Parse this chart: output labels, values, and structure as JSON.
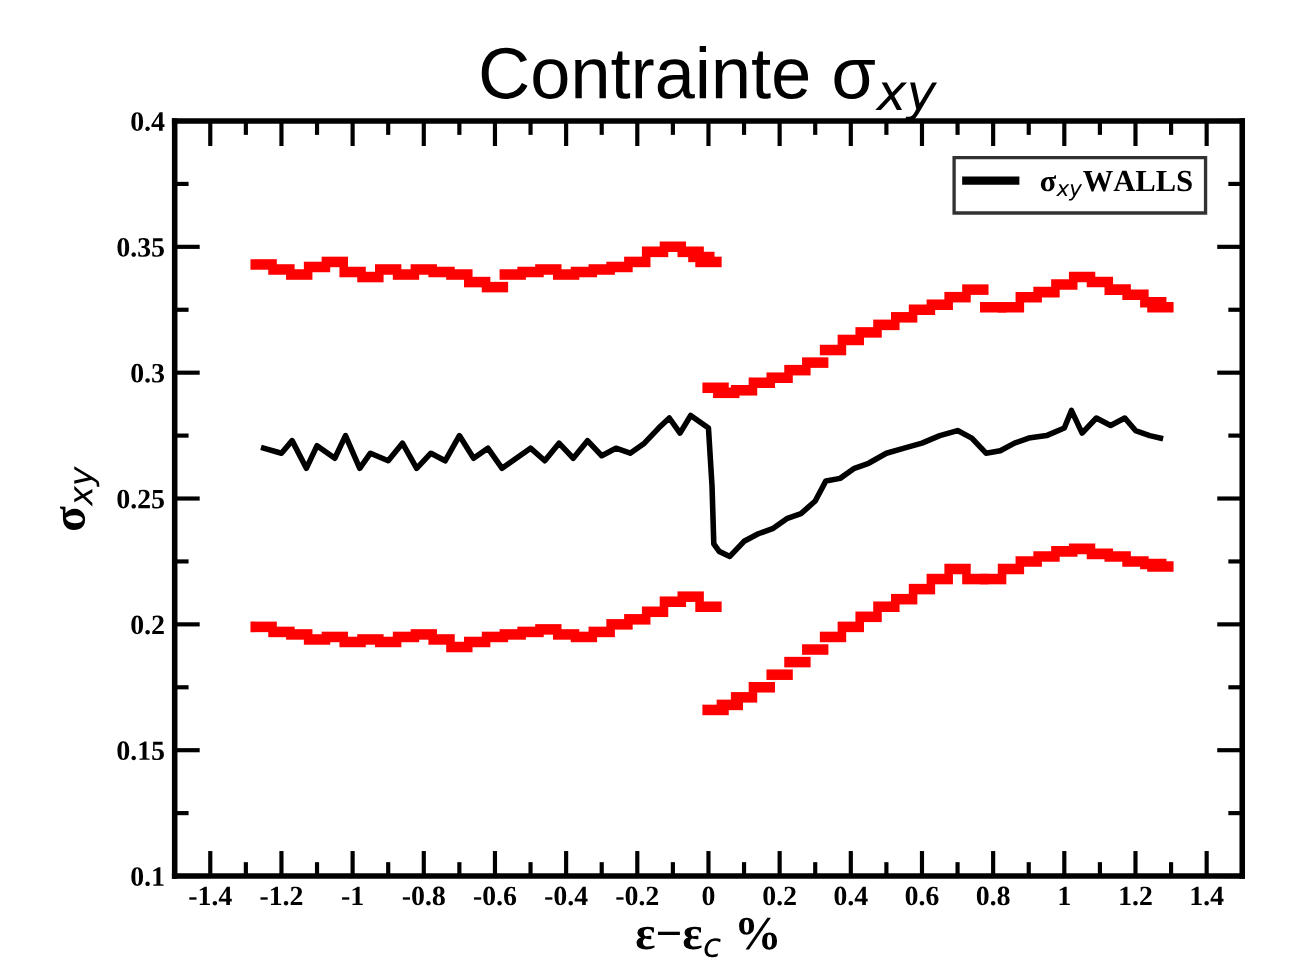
{
  "chart_data": {
    "type": "line",
    "title": "Contrainte σ$_{xy}$",
    "xlabel": "ε−ε$_{c}$ %",
    "ylabel": "σ$_{xy}$",
    "xlim": [
      -1.5,
      1.5
    ],
    "xticks": [
      -1.4,
      -1.2,
      -1,
      -0.8,
      -0.6,
      -0.4,
      -0.2,
      0,
      0.2,
      0.4,
      0.6,
      0.8,
      1,
      1.2,
      1.4
    ],
    "ylim": [
      0.1,
      0.4
    ],
    "yticks": [
      0.1,
      0.15,
      0.2,
      0.25,
      0.3,
      0.35,
      0.4
    ],
    "grid": false,
    "legend": "top right",
    "series": [
      {
        "name": "σ$_{xy}$WALLS",
        "type": "line",
        "color": "#000000",
        "x": [
          -1.25,
          -1.2,
          -1.17,
          -1.13,
          -1.1,
          -1.05,
          -1.02,
          -0.98,
          -0.95,
          -0.9,
          -0.86,
          -0.82,
          -0.78,
          -0.74,
          -0.7,
          -0.66,
          -0.62,
          -0.58,
          -0.55,
          -0.5,
          -0.46,
          -0.42,
          -0.38,
          -0.34,
          -0.3,
          -0.26,
          -0.22,
          -0.18,
          -0.14,
          -0.11,
          -0.08,
          -0.05,
          -0.02,
          0.0,
          0.01,
          0.015,
          0.03,
          0.06,
          0.1,
          0.14,
          0.18,
          0.22,
          0.26,
          0.3,
          0.33,
          0.37,
          0.41,
          0.45,
          0.5,
          0.55,
          0.6,
          0.65,
          0.7,
          0.74,
          0.78,
          0.82,
          0.86,
          0.9,
          0.95,
          1.0,
          1.02,
          1.05,
          1.09,
          1.13,
          1.17,
          1.2,
          1.24,
          1.27
        ],
        "values": [
          0.27,
          0.268,
          0.273,
          0.262,
          0.271,
          0.266,
          0.275,
          0.262,
          0.268,
          0.265,
          0.272,
          0.262,
          0.268,
          0.265,
          0.275,
          0.266,
          0.27,
          0.262,
          0.265,
          0.27,
          0.265,
          0.272,
          0.266,
          0.273,
          0.267,
          0.27,
          0.268,
          0.272,
          0.278,
          0.282,
          0.276,
          0.283,
          0.28,
          0.278,
          0.255,
          0.232,
          0.229,
          0.227,
          0.233,
          0.236,
          0.238,
          0.242,
          0.244,
          0.249,
          0.257,
          0.258,
          0.262,
          0.264,
          0.268,
          0.27,
          0.272,
          0.275,
          0.277,
          0.274,
          0.268,
          0.269,
          0.272,
          0.274,
          0.275,
          0.278,
          0.285,
          0.276,
          0.282,
          0.279,
          0.282,
          0.277,
          0.275,
          0.274
        ]
      },
      {
        "type": "scatter",
        "color": "#ff0000",
        "x": [
          -1.25,
          -1.2,
          -1.15,
          -1.1,
          -1.05,
          -1.0,
          -0.95,
          -0.9,
          -0.85,
          -0.8,
          -0.75,
          -0.7,
          -0.65,
          -0.6,
          -0.55,
          -0.5,
          -0.45,
          -0.4,
          -0.35,
          -0.3,
          -0.25,
          -0.2,
          -0.15,
          -0.1,
          -0.05,
          -0.02,
          0.0,
          0.02,
          0.05,
          0.1,
          0.15,
          0.2,
          0.25,
          0.3,
          0.35,
          0.4,
          0.45,
          0.5,
          0.55,
          0.6,
          0.65,
          0.7,
          0.75,
          0.8,
          0.85,
          0.9,
          0.95,
          1.0,
          1.05,
          1.1,
          1.15,
          1.2,
          1.25,
          1.27
        ],
        "values": [
          0.343,
          0.341,
          0.339,
          0.342,
          0.344,
          0.34,
          0.338,
          0.341,
          0.339,
          0.341,
          0.34,
          0.339,
          0.336,
          0.334,
          0.339,
          0.34,
          0.341,
          0.339,
          0.34,
          0.341,
          0.342,
          0.344,
          0.348,
          0.35,
          0.348,
          0.346,
          0.344,
          0.294,
          0.292,
          0.293,
          0.296,
          0.298,
          0.301,
          0.304,
          0.309,
          0.313,
          0.316,
          0.319,
          0.322,
          0.325,
          0.327,
          0.33,
          0.333,
          0.326,
          0.326,
          0.33,
          0.332,
          0.335,
          0.338,
          0.336,
          0.333,
          0.331,
          0.328,
          0.326
        ]
      },
      {
        "type": "scatter",
        "color": "#ff0000",
        "x": [
          -1.25,
          -1.2,
          -1.15,
          -1.1,
          -1.05,
          -1.0,
          -0.95,
          -0.9,
          -0.85,
          -0.8,
          -0.75,
          -0.7,
          -0.65,
          -0.6,
          -0.55,
          -0.5,
          -0.45,
          -0.4,
          -0.35,
          -0.3,
          -0.25,
          -0.2,
          -0.15,
          -0.1,
          -0.05,
          0.0,
          0.02,
          0.06,
          0.1,
          0.15,
          0.2,
          0.25,
          0.3,
          0.35,
          0.4,
          0.45,
          0.5,
          0.55,
          0.6,
          0.65,
          0.7,
          0.75,
          0.8,
          0.85,
          0.9,
          0.95,
          1.0,
          1.05,
          1.1,
          1.15,
          1.2,
          1.25,
          1.27
        ],
        "values": [
          0.199,
          0.197,
          0.196,
          0.194,
          0.195,
          0.193,
          0.194,
          0.193,
          0.195,
          0.196,
          0.194,
          0.191,
          0.193,
          0.195,
          0.196,
          0.197,
          0.198,
          0.196,
          0.195,
          0.197,
          0.2,
          0.202,
          0.205,
          0.209,
          0.211,
          0.207,
          0.166,
          0.168,
          0.171,
          0.175,
          0.18,
          0.185,
          0.19,
          0.195,
          0.199,
          0.203,
          0.207,
          0.21,
          0.214,
          0.218,
          0.222,
          0.218,
          0.218,
          0.222,
          0.225,
          0.227,
          0.229,
          0.23,
          0.228,
          0.227,
          0.225,
          0.224,
          0.223
        ]
      }
    ]
  }
}
